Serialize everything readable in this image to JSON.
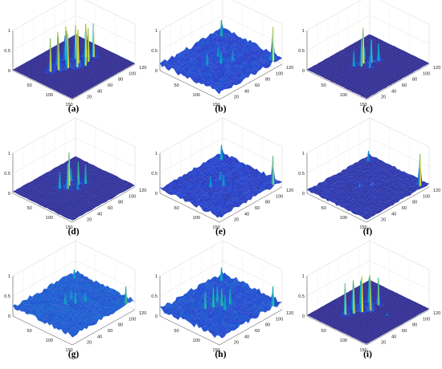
{
  "chart_data": [
    {
      "type": "surface",
      "label": "(a)",
      "zlim": [
        0,
        1
      ],
      "xlim": [
        0,
        150
      ],
      "ylim": [
        0,
        120
      ],
      "x_ticks": [
        50,
        100,
        150
      ],
      "y_ticks": [
        20,
        40,
        60,
        80,
        100,
        120
      ],
      "z_ticks": [
        0,
        0.5,
        1
      ],
      "noise_level": 0.0,
      "background_level": 0.02,
      "peaks": [
        {
          "x": 55,
          "y": 30,
          "z": 0.85
        },
        {
          "x": 62,
          "y": 40,
          "z": 0.85
        },
        {
          "x": 70,
          "y": 52,
          "z": 0.85
        },
        {
          "x": 80,
          "y": 62,
          "z": 0.85
        },
        {
          "x": 88,
          "y": 72,
          "z": 0.85
        },
        {
          "x": 50,
          "y": 48,
          "z": 0.85
        },
        {
          "x": 60,
          "y": 58,
          "z": 0.85
        },
        {
          "x": 72,
          "y": 70,
          "z": 0.85
        },
        {
          "x": 82,
          "y": 82,
          "z": 0.85
        },
        {
          "x": 48,
          "y": 65,
          "z": 0.85
        },
        {
          "x": 58,
          "y": 76,
          "z": 0.85
        },
        {
          "x": 68,
          "y": 88,
          "z": 0.85
        },
        {
          "x": 78,
          "y": 95,
          "z": 0.85
        }
      ]
    },
    {
      "type": "surface",
      "label": "(b)",
      "zlim": [
        0,
        1
      ],
      "xlim": [
        0,
        150
      ],
      "ylim": [
        0,
        120
      ],
      "x_ticks": [
        50,
        100,
        150
      ],
      "y_ticks": [
        20,
        40,
        60,
        80,
        100,
        120
      ],
      "z_ticks": [
        0,
        0.5,
        1
      ],
      "noise_level": 0.12,
      "background_level": 0.1,
      "peaks": [
        {
          "x": 10,
          "y": 110,
          "z": 0.5
        },
        {
          "x": 140,
          "y": 110,
          "z": 0.95
        },
        {
          "x": 60,
          "y": 45,
          "z": 0.4
        },
        {
          "x": 75,
          "y": 60,
          "z": 0.4
        },
        {
          "x": 85,
          "y": 75,
          "z": 0.35
        },
        {
          "x": 55,
          "y": 70,
          "z": 0.35
        }
      ]
    },
    {
      "type": "surface",
      "label": "(c)",
      "zlim": [
        0,
        1
      ],
      "xlim": [
        0,
        150
      ],
      "ylim": [
        0,
        120
      ],
      "x_ticks": [
        50,
        100,
        150
      ],
      "y_ticks": [
        20,
        40,
        60,
        80,
        100,
        120
      ],
      "z_ticks": [
        0,
        0.5,
        1
      ],
      "noise_level": 0.01,
      "background_level": 0.02,
      "peaks": [
        {
          "x": 60,
          "y": 62,
          "z": 0.9
        },
        {
          "x": 65,
          "y": 55,
          "z": 0.7
        },
        {
          "x": 70,
          "y": 70,
          "z": 0.6
        },
        {
          "x": 55,
          "y": 48,
          "z": 0.4
        },
        {
          "x": 75,
          "y": 80,
          "z": 0.45
        },
        {
          "x": 50,
          "y": 72,
          "z": 0.3
        },
        {
          "x": 80,
          "y": 60,
          "z": 0.3
        }
      ]
    },
    {
      "type": "surface",
      "label": "(d)",
      "zlim": [
        0,
        1
      ],
      "xlim": [
        0,
        150
      ],
      "ylim": [
        0,
        120
      ],
      "x_ticks": [
        50,
        100,
        150
      ],
      "y_ticks": [
        20,
        40,
        60,
        80,
        100,
        120
      ],
      "z_ticks": [
        0,
        0.5,
        1
      ],
      "noise_level": 0.02,
      "background_level": 0.03,
      "peaks": [
        {
          "x": 60,
          "y": 62,
          "z": 0.85
        },
        {
          "x": 66,
          "y": 55,
          "z": 0.65
        },
        {
          "x": 70,
          "y": 72,
          "z": 0.6
        },
        {
          "x": 55,
          "y": 48,
          "z": 0.45
        },
        {
          "x": 78,
          "y": 80,
          "z": 0.5
        },
        {
          "x": 52,
          "y": 72,
          "z": 0.35
        },
        {
          "x": 82,
          "y": 62,
          "z": 0.3
        }
      ]
    },
    {
      "type": "surface",
      "label": "(e)",
      "zlim": [
        0,
        1
      ],
      "xlim": [
        0,
        150
      ],
      "ylim": [
        0,
        120
      ],
      "x_ticks": [
        50,
        100,
        150
      ],
      "y_ticks": [
        20,
        40,
        60,
        80,
        100,
        120
      ],
      "z_ticks": [
        0,
        0.5,
        1
      ],
      "noise_level": 0.1,
      "background_level": 0.08,
      "peaks": [
        {
          "x": 10,
          "y": 110,
          "z": 0.45
        },
        {
          "x": 140,
          "y": 110,
          "z": 0.8
        },
        {
          "x": 62,
          "y": 50,
          "z": 0.35
        },
        {
          "x": 75,
          "y": 65,
          "z": 0.35
        },
        {
          "x": 58,
          "y": 72,
          "z": 0.3
        }
      ]
    },
    {
      "type": "surface",
      "label": "(f)",
      "zlim": [
        0,
        1
      ],
      "xlim": [
        0,
        150
      ],
      "ylim": [
        0,
        120
      ],
      "x_ticks": [
        50,
        100,
        150
      ],
      "y_ticks": [
        20,
        40,
        60,
        80,
        100,
        120
      ],
      "z_ticks": [
        0,
        0.5,
        1
      ],
      "noise_level": 0.05,
      "background_level": 0.05,
      "peaks": [
        {
          "x": 10,
          "y": 110,
          "z": 0.3
        },
        {
          "x": 140,
          "y": 110,
          "z": 0.85
        },
        {
          "x": 62,
          "y": 55,
          "z": 0.15
        },
        {
          "x": 75,
          "y": 68,
          "z": 0.15
        }
      ]
    },
    {
      "type": "surface",
      "label": "(g)",
      "zlim": [
        0,
        1
      ],
      "xlim": [
        0,
        150
      ],
      "ylim": [
        0,
        120
      ],
      "x_ticks": [
        50,
        100,
        150
      ],
      "y_ticks": [
        20,
        40,
        60,
        80,
        100,
        120
      ],
      "z_ticks": [
        0,
        0.5,
        1
      ],
      "noise_level": 0.1,
      "background_level": 0.18,
      "peaks": [
        {
          "x": 10,
          "y": 110,
          "z": 0.4
        },
        {
          "x": 140,
          "y": 110,
          "z": 0.6
        },
        {
          "x": 60,
          "y": 55,
          "z": 0.45
        },
        {
          "x": 72,
          "y": 65,
          "z": 0.45
        },
        {
          "x": 55,
          "y": 70,
          "z": 0.4
        },
        {
          "x": 80,
          "y": 78,
          "z": 0.4
        }
      ]
    },
    {
      "type": "surface",
      "label": "(h)",
      "zlim": [
        0,
        1
      ],
      "xlim": [
        0,
        150
      ],
      "ylim": [
        0,
        120
      ],
      "x_ticks": [
        50,
        100,
        150
      ],
      "y_ticks": [
        20,
        40,
        60,
        80,
        100,
        120
      ],
      "z_ticks": [
        0,
        0.5,
        1
      ],
      "noise_level": 0.14,
      "background_level": 0.12,
      "peaks": [
        {
          "x": 10,
          "y": 110,
          "z": 0.45
        },
        {
          "x": 140,
          "y": 110,
          "z": 0.6
        },
        {
          "x": 55,
          "y": 45,
          "z": 0.55
        },
        {
          "x": 62,
          "y": 55,
          "z": 0.6
        },
        {
          "x": 70,
          "y": 65,
          "z": 0.55
        },
        {
          "x": 78,
          "y": 75,
          "z": 0.5
        },
        {
          "x": 55,
          "y": 68,
          "z": 0.5
        },
        {
          "x": 85,
          "y": 60,
          "z": 0.45
        }
      ]
    },
    {
      "type": "surface",
      "label": "(i)",
      "zlim": [
        0,
        1
      ],
      "xlim": [
        0,
        150
      ],
      "ylim": [
        0,
        120
      ],
      "x_ticks": [
        50,
        100,
        150
      ],
      "y_ticks": [
        20,
        40,
        60,
        80,
        100,
        120
      ],
      "z_ticks": [
        0,
        0.5,
        1
      ],
      "noise_level": 0.005,
      "background_level": 0.02,
      "peaks": [
        {
          "x": 50,
          "y": 35,
          "z": 0.8
        },
        {
          "x": 58,
          "y": 45,
          "z": 0.85
        },
        {
          "x": 66,
          "y": 55,
          "z": 0.9
        },
        {
          "x": 74,
          "y": 65,
          "z": 0.8
        },
        {
          "x": 48,
          "y": 52,
          "z": 0.7
        },
        {
          "x": 56,
          "y": 62,
          "z": 0.75
        },
        {
          "x": 64,
          "y": 72,
          "z": 0.8
        },
        {
          "x": 72,
          "y": 82,
          "z": 0.7
        },
        {
          "x": 46,
          "y": 68,
          "z": 0.6
        },
        {
          "x": 54,
          "y": 78,
          "z": 0.65
        },
        {
          "x": 110,
          "y": 70,
          "z": 0.1
        }
      ]
    }
  ]
}
